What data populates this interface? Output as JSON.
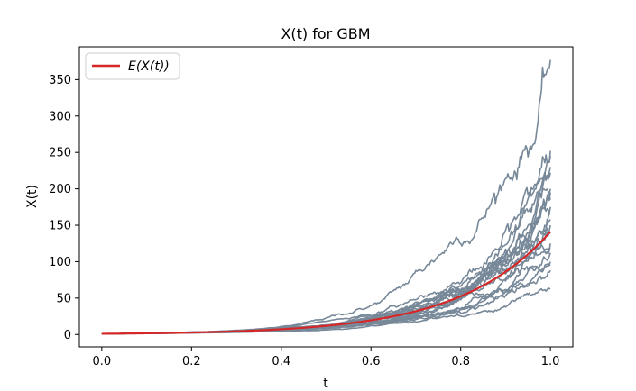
{
  "chart_data": {
    "type": "line",
    "title": "X(t) for GBM",
    "xlabel": "t",
    "ylabel": "X(t)",
    "xlim": [
      -0.05,
      1.05
    ],
    "ylim": [
      -17,
      395
    ],
    "xticks": [
      0.0,
      0.2,
      0.4,
      0.6,
      0.8,
      1.0
    ],
    "xtick_labels": [
      "0.0",
      "0.2",
      "0.4",
      "0.6",
      "0.8",
      "1.0"
    ],
    "yticks": [
      0,
      50,
      100,
      150,
      200,
      250,
      300,
      350
    ],
    "ytick_labels": [
      "0",
      "50",
      "100",
      "150",
      "200",
      "250",
      "300",
      "350"
    ],
    "grid": false,
    "legend": {
      "position": "top-left",
      "entries": [
        "E(X(t))"
      ]
    },
    "expected": {
      "name": "E(X(t))",
      "color": "#d62728",
      "x0": 1,
      "rate": 4.95,
      "x": [
        0.0,
        0.1,
        0.2,
        0.3,
        0.4,
        0.5,
        0.6,
        0.7,
        0.8,
        0.9,
        1.0
      ],
      "values": [
        1,
        1.64,
        2.69,
        4.42,
        7.25,
        11.9,
        19.5,
        32.0,
        52.5,
        86.1,
        141
      ]
    },
    "paths": {
      "color": "#778899",
      "count": 20,
      "x": [
        0.0,
        0.1,
        0.2,
        0.3,
        0.4,
        0.5,
        0.6,
        0.7,
        0.8,
        0.9,
        1.0
      ],
      "final_values": [
        377,
        252,
        245,
        230,
        222,
        200,
        195,
        185,
        175,
        165,
        158,
        150,
        140,
        125,
        118,
        112,
        100,
        95,
        88,
        63
      ]
    }
  }
}
